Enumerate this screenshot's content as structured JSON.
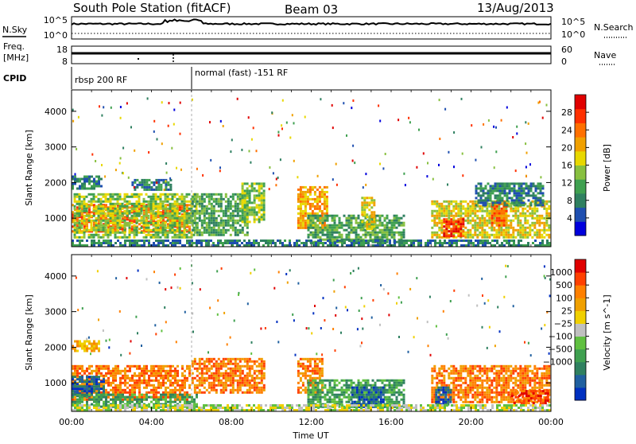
{
  "header": {
    "station": "South Pole Station (fitACF)",
    "beam": "Beam 03",
    "date": "13/Aug/2013"
  },
  "strips": {
    "nsky_label": "N.Sky",
    "nsky_ticks": [
      "10^5",
      "10^0"
    ],
    "nsearch_label": "N.Search",
    "nsearch_ticks": [
      "10^5",
      "10^0"
    ],
    "freq_label_line1": "Freq.",
    "freq_label_line2": "[MHz]",
    "freq_ticks": [
      "18",
      "8"
    ],
    "nave_label": "Nave",
    "nave_ticks": [
      "60",
      "0"
    ],
    "cpid_label": "CPID",
    "cpid_segments": [
      {
        "label": "rbsp 200 RF",
        "start_hour": 0,
        "end_hour": 6
      },
      {
        "label": "normal (fast) -151 RF",
        "start_hour": 6,
        "end_hour": 24
      }
    ]
  },
  "chart_data": [
    {
      "type": "heatmap",
      "name": "power",
      "xlabel": "",
      "ylabel": "Slant Range [km]",
      "xlim": [
        0,
        24
      ],
      "ylim": [
        200,
        4600
      ],
      "yticks": [
        1000,
        2000,
        3000,
        4000
      ],
      "colorbar": {
        "label": "Power [dB]",
        "range": [
          0,
          32
        ],
        "ticks": [
          4,
          8,
          12,
          16,
          20,
          24,
          28
        ],
        "colors": [
          "#0000dd",
          "#1f4fb0",
          "#2f8060",
          "#3fa050",
          "#88c040",
          "#e8d800",
          "#f0a000",
          "#ff7000",
          "#ff3000",
          "#e00000"
        ]
      },
      "regions": [
        {
          "t0": 0.0,
          "t1": 5.9,
          "r0": 600,
          "r1": 1400,
          "level": 26
        },
        {
          "t0": 0.1,
          "t1": 6.3,
          "r0": 450,
          "r1": 1700,
          "level": 14
        },
        {
          "t0": 0.0,
          "t1": 1.5,
          "r0": 1850,
          "r1": 2200,
          "level": 6
        },
        {
          "t0": 3.0,
          "t1": 5.0,
          "r0": 1800,
          "r1": 2100,
          "level": 6
        },
        {
          "t0": 6.0,
          "t1": 8.8,
          "r0": 500,
          "r1": 1700,
          "level": 12
        },
        {
          "t0": 8.5,
          "t1": 9.6,
          "r0": 900,
          "r1": 2000,
          "level": 14
        },
        {
          "t0": 11.3,
          "t1": 12.8,
          "r0": 700,
          "r1": 1900,
          "level": 20
        },
        {
          "t0": 11.8,
          "t1": 16.6,
          "r0": 300,
          "r1": 1100,
          "level": 10
        },
        {
          "t0": 14.5,
          "t1": 15.2,
          "r0": 700,
          "r1": 1600,
          "level": 16
        },
        {
          "t0": 18.0,
          "t1": 23.9,
          "r0": 450,
          "r1": 1500,
          "level": 16
        },
        {
          "t0": 18.6,
          "t1": 19.6,
          "r0": 500,
          "r1": 1000,
          "level": 28
        },
        {
          "t0": 21.0,
          "t1": 21.8,
          "r0": 800,
          "r1": 1500,
          "level": 26
        },
        {
          "t0": 20.2,
          "t1": 23.6,
          "r0": 1350,
          "r1": 2000,
          "level": 8
        },
        {
          "t0": 0.0,
          "t1": 24.0,
          "r0": 250,
          "r1": 400,
          "level": 6
        }
      ]
    },
    {
      "type": "heatmap",
      "name": "velocity",
      "xlabel": "Time UT",
      "ylabel": "Slant Range [km]",
      "xlim": [
        0,
        24
      ],
      "ylim": [
        200,
        4600
      ],
      "yticks": [
        1000,
        2000,
        3000,
        4000
      ],
      "xticks": [
        "00:00",
        "04:00",
        "08:00",
        "12:00",
        "16:00",
        "20:00",
        "00:00"
      ],
      "colorbar": {
        "label": "Velocity [m s^-1]",
        "ticks": [
          "1000",
          "500",
          "100",
          "25",
          "−25",
          "−100",
          "−500",
          "−1000"
        ],
        "colors": [
          "#0030c0",
          "#2060a0",
          "#2f8060",
          "#3fa050",
          "#60c040",
          "#c0c0c0",
          "#f0d000",
          "#f0a000",
          "#ff8000",
          "#ff4000",
          "#e00000"
        ]
      },
      "regions": [
        {
          "t0": 0.0,
          "t1": 5.9,
          "r0": 500,
          "r1": 1500,
          "level": 8
        },
        {
          "t0": 0.0,
          "t1": 1.6,
          "r0": 600,
          "r1": 1200,
          "level": 1
        },
        {
          "t0": 0.0,
          "t1": 6.3,
          "r0": 300,
          "r1": 700,
          "level": 3
        },
        {
          "t0": 6.0,
          "t1": 9.6,
          "r0": 700,
          "r1": 1700,
          "level": 8
        },
        {
          "t0": 0.0,
          "t1": 1.4,
          "r0": 1900,
          "r1": 2200,
          "level": 7
        },
        {
          "t0": 11.3,
          "t1": 12.6,
          "r0": 700,
          "r1": 1700,
          "level": 8
        },
        {
          "t0": 11.8,
          "t1": 16.6,
          "r0": 300,
          "r1": 1100,
          "level": 3
        },
        {
          "t0": 14.0,
          "t1": 15.6,
          "r0": 350,
          "r1": 900,
          "level": 1
        },
        {
          "t0": 18.0,
          "t1": 23.9,
          "r0": 450,
          "r1": 1500,
          "level": 8
        },
        {
          "t0": 18.2,
          "t1": 19.0,
          "r0": 400,
          "r1": 900,
          "level": 1
        },
        {
          "t0": 22.0,
          "t1": 23.8,
          "r0": 400,
          "r1": 800,
          "level": 9
        },
        {
          "t0": 0.0,
          "t1": 24.0,
          "r0": 250,
          "r1": 400,
          "level": 5
        }
      ]
    }
  ]
}
